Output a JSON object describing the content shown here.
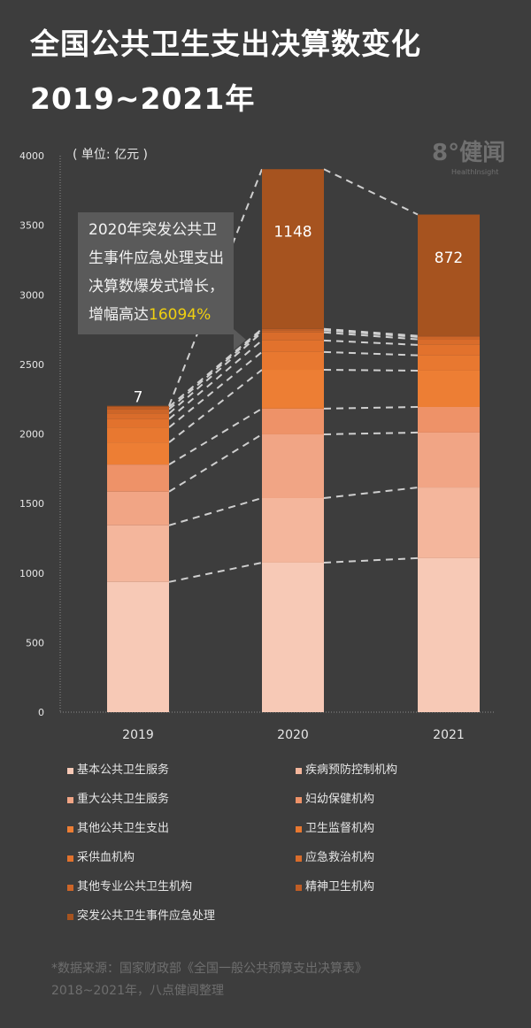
{
  "title": {
    "line1": "全国公共卫生支出决算数变化",
    "line2": "2019~2021年"
  },
  "logo": {
    "mark": "8°健闻",
    "sub": "HealthInsight"
  },
  "unit_label": "( 单位: 亿元 )",
  "callout": {
    "text": "2020年突发公共卫生事件应急处理支出决算数爆发式增长，增幅高达",
    "highlight": "16094%"
  },
  "chart_data": {
    "type": "bar",
    "stacked": true,
    "title": "全国公共卫生支出决算数变化 2019~2021年",
    "ylabel": "亿元",
    "ylim": [
      0,
      4000
    ],
    "yticks": [
      0,
      500,
      1000,
      1500,
      2000,
      2500,
      3000,
      3500,
      4000
    ],
    "categories": [
      "2019",
      "2020",
      "2021"
    ],
    "series": [
      {
        "name": "基本公共卫生服务",
        "color": "#f7c9b6",
        "values": [
          936,
          1075,
          1107
        ]
      },
      {
        "name": "疾病预防控制机构",
        "color": "#f4b69c",
        "values": [
          407,
          464,
          508
        ]
      },
      {
        "name": "重大公共卫生服务",
        "color": "#f1a585",
        "values": [
          242,
          458,
          395
        ]
      },
      {
        "name": "妇幼保健机构",
        "color": "#ee9268",
        "values": [
          195,
          185,
          184
        ]
      },
      {
        "name": "其他公共卫生支出",
        "color": "#ed7e34",
        "values": [
          159,
          279,
          261
        ]
      },
      {
        "name": "卫生监督机构",
        "color": "#e87830",
        "values": [
          108,
          128,
          110
        ]
      },
      {
        "name": "采供血机构",
        "color": "#e2722d",
        "values": [
          60,
          83,
          75
        ]
      },
      {
        "name": "应急救治机构",
        "color": "#d96c2b",
        "values": [
          40,
          58,
          40
        ]
      },
      {
        "name": "其他专业公共卫生机构",
        "color": "#cd6528",
        "values": [
          30,
          15,
          17
        ]
      },
      {
        "name": "精神卫生机构",
        "color": "#bf5d25",
        "values": [
          18,
          10,
          8
        ]
      },
      {
        "name": "突发公共卫生事件应急处理",
        "color": "#a6531f",
        "values": [
          7,
          1148,
          872
        ]
      }
    ],
    "data_labels": [
      "7",
      "1148",
      "872"
    ],
    "legend": "bottom",
    "grid": false
  },
  "source": {
    "line1": "*数据来源：国家财政部《全国一般公共预算支出决算表》",
    "line2": "2018~2021年，八点健闻整理"
  }
}
